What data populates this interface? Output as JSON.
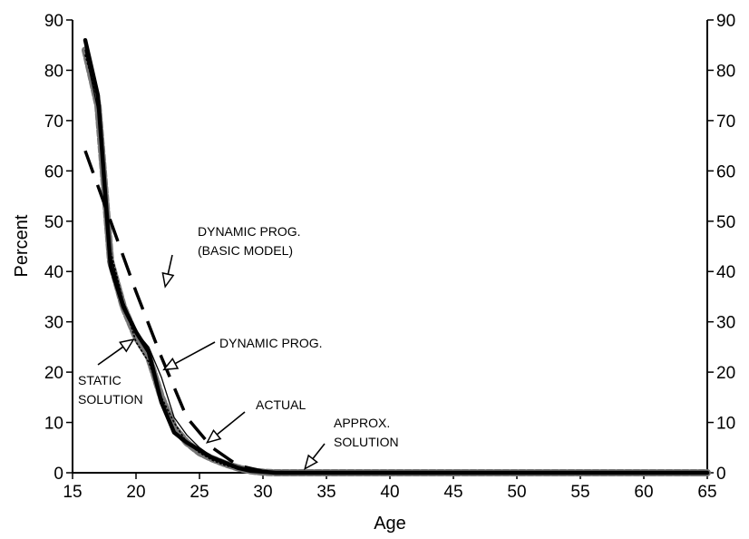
{
  "chart_data": {
    "type": "line",
    "xlabel": "Age",
    "ylabel": "Percent",
    "xlim": [
      15,
      65
    ],
    "ylim": [
      0,
      90
    ],
    "x_ticks": [
      "15",
      "20",
      "25",
      "30",
      "35",
      "40",
      "45",
      "50",
      "55",
      "60",
      "65"
    ],
    "y_ticks": [
      "0",
      "10",
      "20",
      "30",
      "40",
      "50",
      "60",
      "70",
      "80",
      "90"
    ],
    "right_axis": true,
    "grid": false,
    "series": [
      {
        "name": "ACTUAL",
        "style": "thick-solid",
        "color": "#000000",
        "points": [
          [
            16,
            86
          ],
          [
            17,
            75
          ],
          [
            18,
            41
          ],
          [
            19,
            33
          ],
          [
            20,
            28
          ],
          [
            21,
            24
          ],
          [
            22,
            14
          ],
          [
            23,
            8
          ],
          [
            24,
            6
          ],
          [
            25,
            4.5
          ],
          [
            26,
            3
          ],
          [
            27,
            2
          ],
          [
            28,
            1
          ],
          [
            29,
            0.4
          ],
          [
            30,
            0.2
          ],
          [
            31,
            0
          ],
          [
            65,
            0
          ]
        ]
      },
      {
        "name": "DYNAMIC PROG.",
        "style": "thin-solid",
        "color": "#000000",
        "points": [
          [
            16,
            84
          ],
          [
            17,
            72
          ],
          [
            18,
            43
          ],
          [
            19,
            34
          ],
          [
            20,
            28
          ],
          [
            21,
            25
          ],
          [
            22,
            19
          ],
          [
            23,
            11
          ],
          [
            24,
            7.5
          ],
          [
            25,
            5
          ],
          [
            26,
            3.2
          ],
          [
            27,
            2
          ],
          [
            28,
            1
          ],
          [
            29,
            0.4
          ],
          [
            30,
            0.1
          ],
          [
            31,
            0
          ],
          [
            65,
            0
          ]
        ]
      },
      {
        "name": "DYNAMIC PROG. (BASIC MODEL)",
        "style": "long-dash",
        "color": "#000000",
        "points": [
          [
            16,
            64
          ],
          [
            18,
            50
          ],
          [
            20,
            36
          ],
          [
            22,
            23
          ],
          [
            24,
            11
          ],
          [
            26,
            5
          ],
          [
            28,
            1.5
          ],
          [
            30,
            0.3
          ],
          [
            32,
            0
          ],
          [
            65,
            0
          ]
        ]
      },
      {
        "name": "STATIC SOLUTION",
        "style": "dotted",
        "color": "#000000",
        "points": [
          [
            16,
            83
          ],
          [
            17,
            74
          ],
          [
            18,
            44
          ],
          [
            19,
            34
          ],
          [
            20,
            26
          ],
          [
            21,
            22
          ],
          [
            22,
            15
          ],
          [
            23,
            10
          ],
          [
            24,
            6
          ],
          [
            25,
            4
          ],
          [
            26,
            2.5
          ],
          [
            27,
            1.5
          ],
          [
            28,
            0.8
          ],
          [
            29,
            0.3
          ],
          [
            30,
            0
          ],
          [
            65,
            0
          ]
        ]
      },
      {
        "name": "APPROX. SOLUTION",
        "style": "gray-band",
        "color": "#777777",
        "points": [
          [
            16,
            84
          ],
          [
            17,
            73
          ],
          [
            18,
            42
          ],
          [
            19,
            33
          ],
          [
            20,
            27
          ],
          [
            21,
            23
          ],
          [
            22,
            15
          ],
          [
            23,
            9
          ],
          [
            24,
            6
          ],
          [
            25,
            4
          ],
          [
            26,
            2.8
          ],
          [
            27,
            1.8
          ],
          [
            28,
            1
          ],
          [
            29,
            0.4
          ],
          [
            30,
            0.1
          ],
          [
            31,
            0
          ],
          [
            65,
            0
          ]
        ]
      }
    ],
    "annotations": [
      {
        "lines": [
          "DYNAMIC PROG.",
          "(BASIC MODEL)"
        ],
        "arrow_to": [
          22.3,
          37
        ]
      },
      {
        "lines": [
          "DYNAMIC PROG."
        ],
        "arrow_to": [
          22.2,
          20.5
        ]
      },
      {
        "lines": [
          "STATIC",
          "SOLUTION"
        ],
        "arrow_to": [
          19.8,
          26.5
        ]
      },
      {
        "lines": [
          "ACTUAL"
        ],
        "arrow_to": [
          25.6,
          6
        ]
      },
      {
        "lines": [
          "APPROX.",
          "SOLUTION"
        ],
        "arrow_to": [
          33.3,
          0.8
        ]
      }
    ]
  }
}
